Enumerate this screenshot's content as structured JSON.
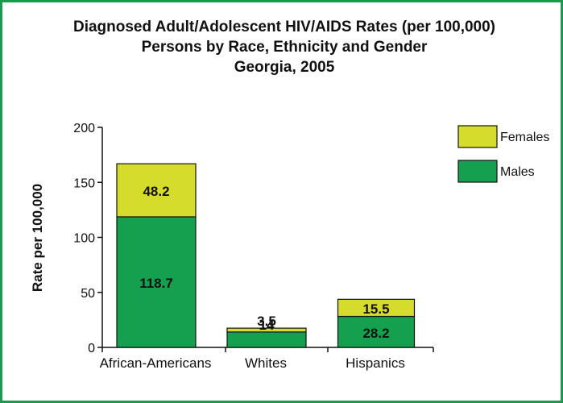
{
  "chart_data": {
    "type": "bar",
    "stacked": true,
    "title": [
      "Diagnosed Adult/Adolescent HIV/AIDS Rates (per 100,000)",
      "Persons by Race, Ethnicity and Gender",
      "Georgia, 2005"
    ],
    "xlabel": "",
    "ylabel": "Rate per 100,000",
    "ylim": [
      0,
      200
    ],
    "yticks": [
      0,
      50,
      100,
      150,
      200
    ],
    "categories": [
      "African-Americans",
      "Whites",
      "Hispanics"
    ],
    "series": [
      {
        "name": "Males",
        "color": "#15a050",
        "values": [
          118.7,
          14,
          28.2
        ],
        "labels": [
          "118.7",
          "14",
          "28.2"
        ]
      },
      {
        "name": "Females",
        "color": "#d6dc2c",
        "values": [
          48.2,
          3.5,
          15.5
        ],
        "labels": [
          "48.2",
          "3.5",
          "15.5"
        ]
      }
    ],
    "legend": {
      "placement": "right",
      "order": [
        "Females",
        "Males"
      ]
    },
    "grid": false
  }
}
